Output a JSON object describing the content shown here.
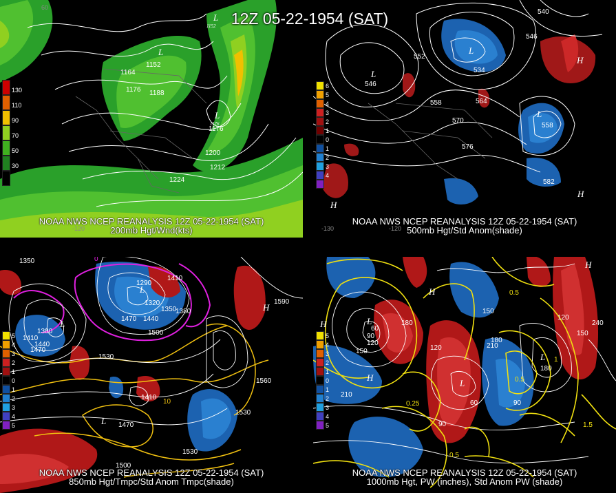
{
  "main_title": "12Z 05-22-1954 (SAT)",
  "panels": {
    "top_left": {
      "line1": "NOAA NWS NCEP REANALYSIS 12Z 05-22-1954 (SAT)",
      "line2": "200mb Hgt/Wnd(kts)",
      "colorbar": [
        "130",
        "110",
        "90",
        "70",
        "50",
        "30"
      ],
      "colorbar_colors": [
        "#cc0000",
        "#e06000",
        "#f0c000",
        "#90d020",
        "#40b020",
        "#208020"
      ],
      "labels": [
        "1164",
        "1152",
        "1176",
        "1188",
        "1176",
        "1176",
        "1200",
        "1212",
        "1224",
        "1152",
        "1176"
      ],
      "axis": [
        "60",
        "-120"
      ]
    },
    "top_right": {
      "line1": "NOAA NWS NCEP REANALYSIS 12Z 05-22-1954 (SAT)",
      "line2": "500mb Hgt/Std Anom(shade)",
      "colorbar": [
        "6",
        "5",
        "4",
        "3",
        "2",
        "1",
        "0",
        "1",
        "2",
        "3",
        "4",
        "5"
      ],
      "colorbar_colors": [
        "#f0e000",
        "#f0a000",
        "#e06000",
        "#cc2020",
        "#a01010",
        "#700000",
        "#000000",
        "#1050a0",
        "#2080d0",
        "#20a0e0",
        "#4040c0",
        "#8020c0"
      ],
      "labels": [
        "546",
        "552",
        "558",
        "564",
        "570",
        "576",
        "552",
        "558",
        "582",
        "540",
        "546",
        "534"
      ],
      "axis": [
        "-130",
        "-120"
      ]
    },
    "bottom_left": {
      "line1": "NOAA NWS NCEP REANALYSIS 12Z 05-22-1954 (SAT)",
      "line2": "850mb Hgt/Tmpc/Std Anom Tmpc(shade)",
      "colorbar": [
        "5",
        "4",
        "3",
        "2",
        "1",
        "0",
        "1",
        "2",
        "3",
        "4",
        "5"
      ],
      "labels": [
        "1350",
        "1410",
        "1440",
        "1470",
        "1380",
        "1290",
        "1320",
        "1350",
        "1380",
        "1440",
        "1500",
        "1530",
        "1470",
        "1410",
        "1440",
        "1530",
        "1560",
        "1590",
        "1470",
        "1530",
        "1410",
        "1500"
      ],
      "temps": [
        "0",
        "10",
        "10",
        "0"
      ]
    },
    "bottom_right": {
      "line1": "NOAA NWS NCEP REANALYSIS 12Z 05-22-1954 (SAT)",
      "line2": "1000mb Hgt, PW (inches), Std Anom PW (shade)",
      "colorbar": [
        "5",
        "4",
        "3",
        "2",
        "1",
        "0",
        "1",
        "2",
        "3",
        "4",
        "5"
      ],
      "labels": [
        "60",
        "90",
        "120",
        "150",
        "180",
        "210",
        "240",
        "120",
        "90",
        "150",
        "180",
        "210",
        "60",
        "90",
        "120",
        "150",
        "180"
      ],
      "pw": [
        "0.5",
        "0.25",
        "1.5",
        "1",
        "0.5",
        "0.25",
        "0.5",
        "1.5",
        "1"
      ]
    }
  },
  "colors": {
    "accent_yellow": "#f0e010",
    "magenta": "#e020e0",
    "anom_red": "#b01818",
    "anom_blue": "#1c62b0",
    "wind_green": "#22aa22"
  }
}
